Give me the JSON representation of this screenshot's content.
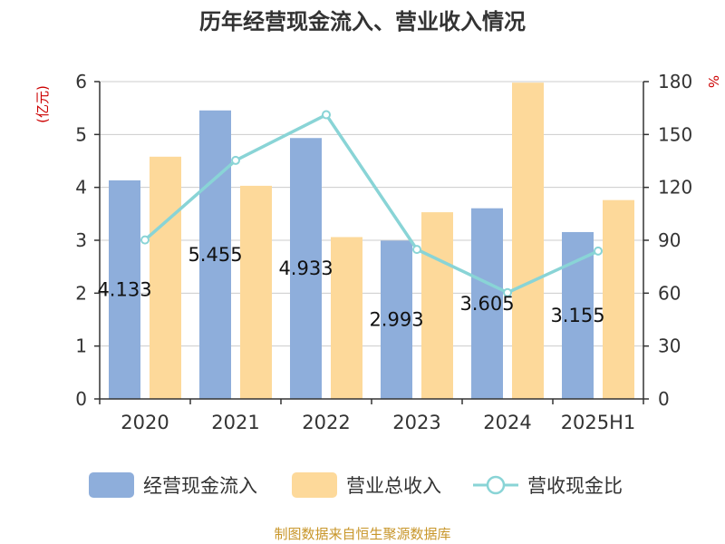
{
  "chart_data": {
    "type": "bar",
    "title": "历年经营现金流入、营业收入情况",
    "left_unit": "(亿元)",
    "right_unit": "%",
    "categories": [
      "2020",
      "2021",
      "2022",
      "2023",
      "2024",
      "2025H1"
    ],
    "ylim": [
      0,
      6
    ],
    "yticks": [
      0,
      1,
      2,
      3,
      4,
      5,
      6
    ],
    "y2lim": [
      0,
      180
    ],
    "y2ticks": [
      0,
      30,
      60,
      90,
      120,
      150,
      180
    ],
    "grid": true,
    "legend_position": "bottom",
    "series": [
      {
        "name": "经营现金流入",
        "kind": "bar",
        "axis": "left",
        "color": "#8eaedb",
        "values": [
          4.133,
          5.455,
          4.933,
          2.993,
          3.605,
          3.155
        ],
        "labels": [
          "4.133",
          "5.455",
          "4.933",
          "2.993",
          "3.605",
          "3.155"
        ]
      },
      {
        "name": "营业总收入",
        "kind": "bar",
        "axis": "left",
        "color": "#fdd99a",
        "values": [
          4.58,
          4.03,
          3.06,
          3.53,
          5.98,
          3.76
        ]
      },
      {
        "name": "营收现金比",
        "kind": "line",
        "axis": "right",
        "color": "#89d4d6",
        "values": [
          90.2,
          135.3,
          161.2,
          84.8,
          60.3,
          83.9
        ]
      }
    ],
    "source": "制图数据来自恒生聚源数据库"
  }
}
